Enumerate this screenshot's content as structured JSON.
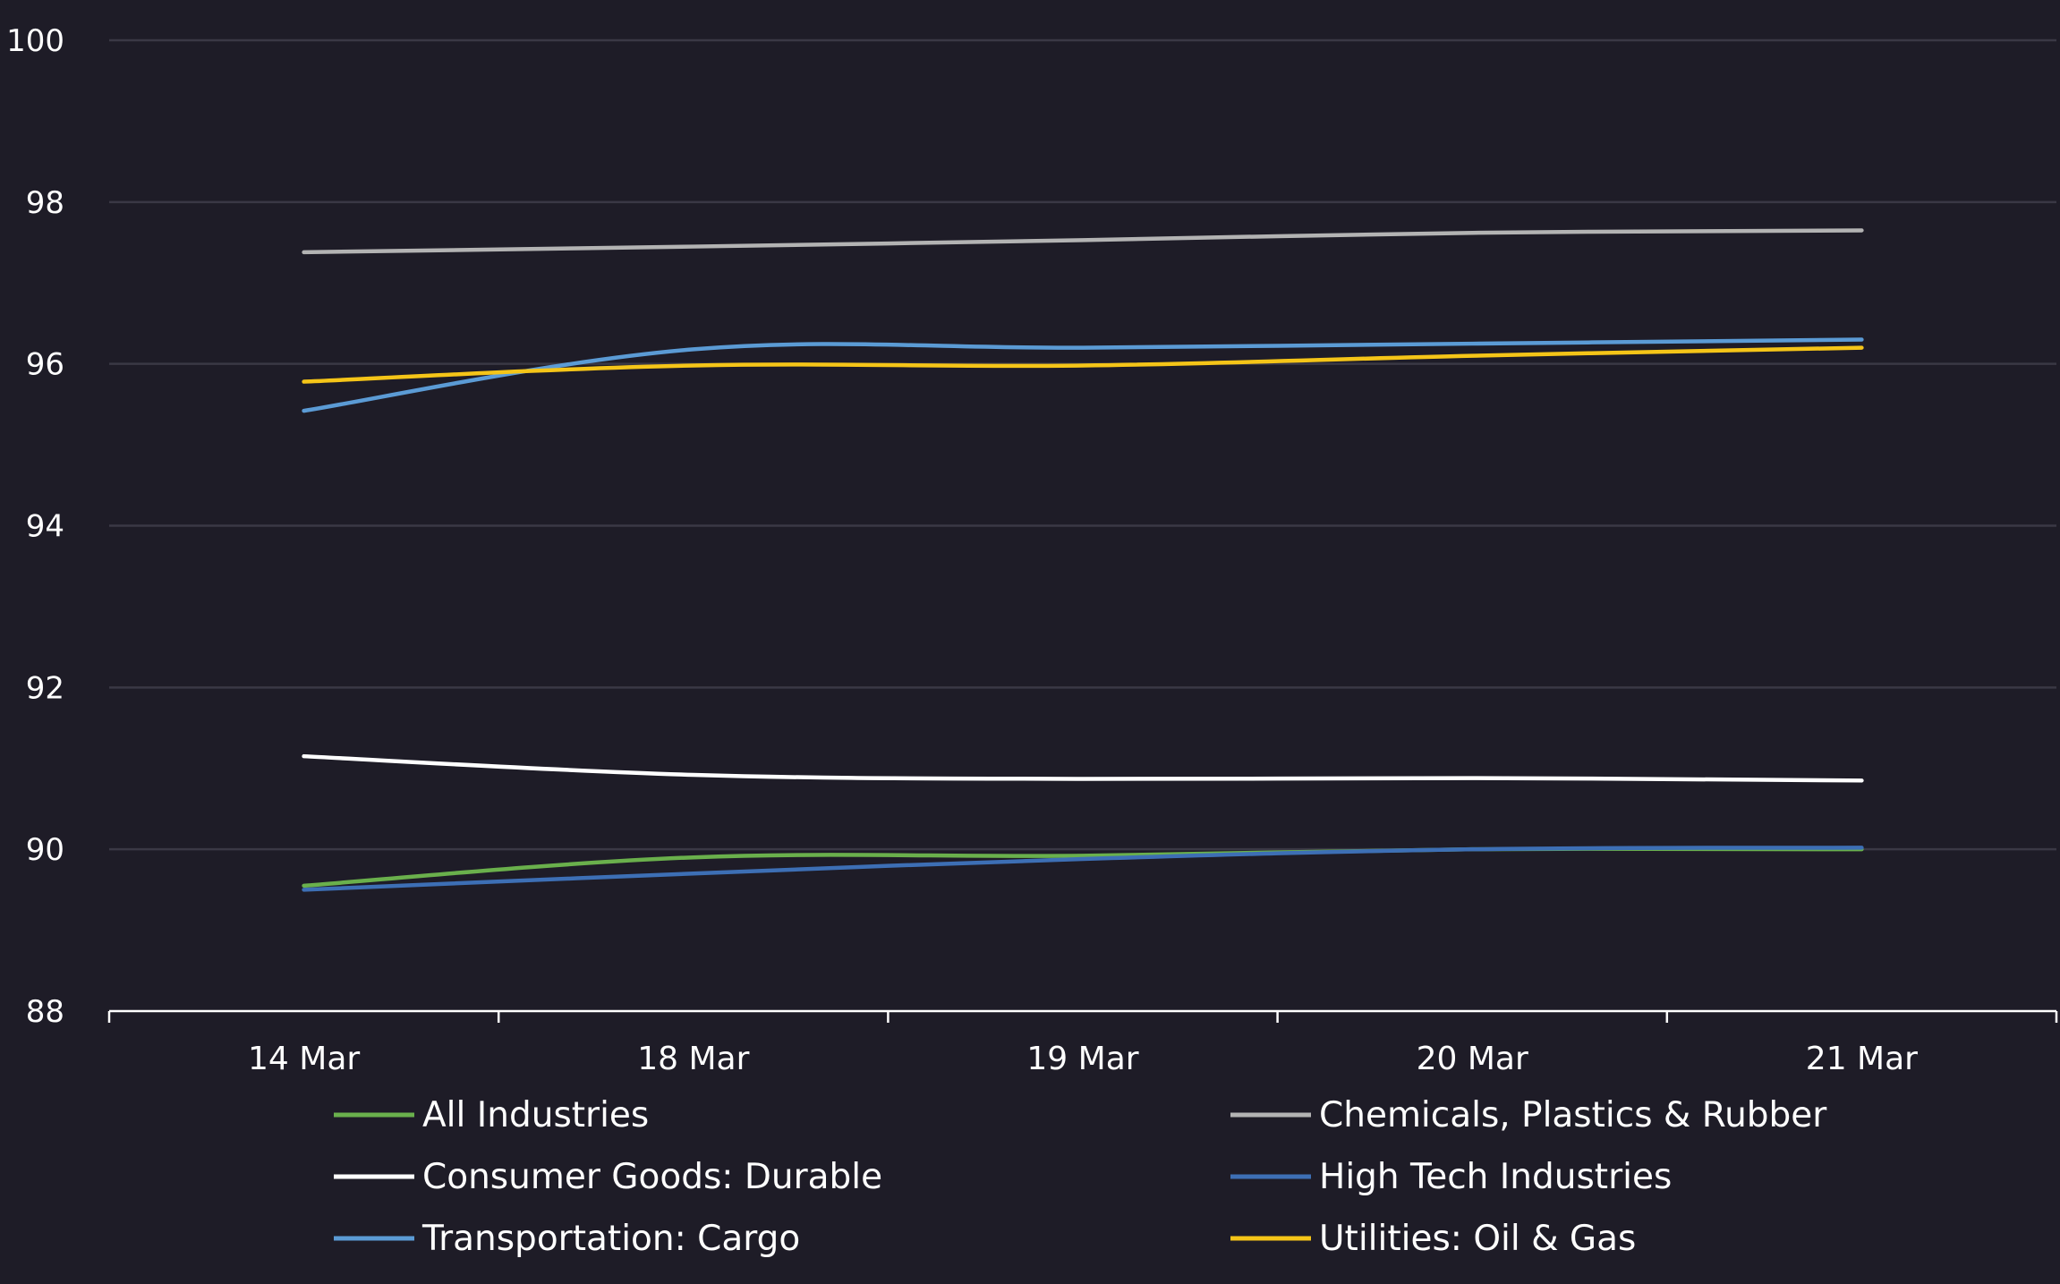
{
  "chart_data": {
    "type": "line",
    "title": "",
    "xlabel": "",
    "ylabel": "",
    "categories": [
      "14 Mar",
      "18 Mar",
      "19 Mar",
      "20 Mar",
      "21 Mar"
    ],
    "ylim": [
      88,
      100
    ],
    "yticks": [
      88,
      90,
      92,
      94,
      96,
      98,
      100
    ],
    "grid": true,
    "legend_position": "bottom",
    "background": "#1e1c27",
    "series": [
      {
        "name": "All Industries",
        "color": "#6ab04c",
        "values": [
          89.55,
          89.9,
          89.92,
          90.0,
          90.0
        ]
      },
      {
        "name": "Chemicals, Plastics & Rubber",
        "color": "#b3b3b3",
        "values": [
          97.38,
          97.45,
          97.53,
          97.62,
          97.65
        ]
      },
      {
        "name": "Consumer Goods: Durable",
        "color": "#ffffff",
        "values": [
          91.15,
          90.92,
          90.87,
          90.88,
          90.85
        ]
      },
      {
        "name": "High Tech Industries",
        "color": "#3d6fb5",
        "values": [
          89.5,
          89.7,
          89.88,
          90.0,
          90.02
        ]
      },
      {
        "name": "Transportation: Cargo",
        "color": "#5b9bd5",
        "values": [
          95.42,
          96.18,
          96.2,
          96.25,
          96.3
        ]
      },
      {
        "name": "Utilities: Oil & Gas",
        "color": "#f5c518",
        "values": [
          95.78,
          95.98,
          95.98,
          96.1,
          96.2
        ]
      }
    ]
  }
}
